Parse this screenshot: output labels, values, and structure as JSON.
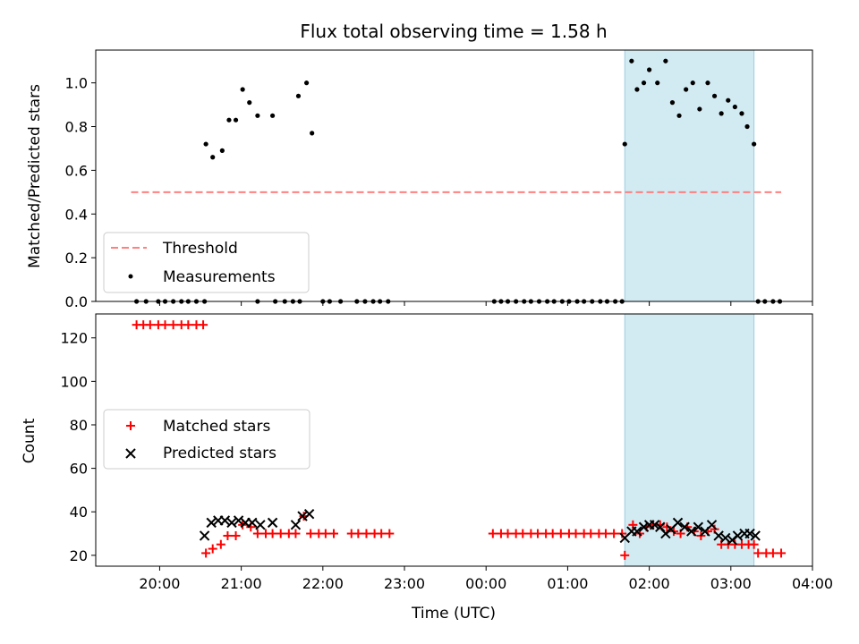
{
  "chart_data": [
    {
      "type": "scatter",
      "title": "Flux total observing time = 1.58 h",
      "ylabel": "Matched/Predicted stars",
      "ylim": [
        0,
        1.15
      ],
      "yticks": [
        "0.0",
        "0.2",
        "0.4",
        "0.6",
        "0.8",
        "1.0"
      ],
      "highlight_span": [
        "01:42",
        "03:17"
      ],
      "threshold": {
        "name": "Threshold",
        "value": 0.5,
        "x_range": [
          "19:39",
          "03:37"
        ],
        "color": "#ff8080",
        "style": "dashed"
      },
      "legend": {
        "placement": "lower-left",
        "entries": [
          "Threshold",
          "Measurements"
        ]
      },
      "series": [
        {
          "name": "Measurements",
          "marker": "dot",
          "color": "#000000",
          "points": [
            [
              "19:43",
              0
            ],
            [
              "19:50",
              0
            ],
            [
              "19:59",
              0
            ],
            [
              "20:04",
              0
            ],
            [
              "20:10",
              0
            ],
            [
              "20:16",
              0
            ],
            [
              "20:21",
              0
            ],
            [
              "20:27",
              0
            ],
            [
              "20:33",
              0
            ],
            [
              "20:34",
              0.72
            ],
            [
              "20:39",
              0.66
            ],
            [
              "20:46",
              0.69
            ],
            [
              "20:51",
              0.83
            ],
            [
              "20:56",
              0.83
            ],
            [
              "21:01",
              0.97
            ],
            [
              "21:06",
              0.91
            ],
            [
              "21:12",
              0.85
            ],
            [
              "21:23",
              0.85
            ],
            [
              "21:42",
              0.94
            ],
            [
              "21:48",
              1.0
            ],
            [
              "21:52",
              0.77
            ],
            [
              "21:12",
              0
            ],
            [
              "21:25",
              0
            ],
            [
              "21:32",
              0
            ],
            [
              "21:38",
              0
            ],
            [
              "21:43",
              0
            ],
            [
              "22:00",
              0
            ],
            [
              "22:05",
              0
            ],
            [
              "22:13",
              0
            ],
            [
              "22:25",
              0
            ],
            [
              "22:31",
              0
            ],
            [
              "22:37",
              0
            ],
            [
              "22:42",
              0
            ],
            [
              "22:48",
              0
            ],
            [
              "00:06",
              0
            ],
            [
              "00:11",
              0
            ],
            [
              "00:16",
              0
            ],
            [
              "00:22",
              0
            ],
            [
              "00:28",
              0
            ],
            [
              "00:33",
              0
            ],
            [
              "00:39",
              0
            ],
            [
              "00:45",
              0
            ],
            [
              "00:50",
              0
            ],
            [
              "00:56",
              0
            ],
            [
              "01:01",
              0
            ],
            [
              "01:07",
              0
            ],
            [
              "01:12",
              0
            ],
            [
              "01:18",
              0
            ],
            [
              "01:24",
              0
            ],
            [
              "01:29",
              0
            ],
            [
              "01:35",
              0
            ],
            [
              "01:40",
              0
            ],
            [
              "01:42",
              0.72
            ],
            [
              "01:47",
              1.1
            ],
            [
              "01:51",
              0.97
            ],
            [
              "01:56",
              1.0
            ],
            [
              "02:00",
              1.06
            ],
            [
              "02:06",
              1.0
            ],
            [
              "02:12",
              1.1
            ],
            [
              "02:17",
              0.91
            ],
            [
              "02:22",
              0.85
            ],
            [
              "02:27",
              0.97
            ],
            [
              "02:32",
              1.0
            ],
            [
              "02:37",
              0.88
            ],
            [
              "02:43",
              1.0
            ],
            [
              "02:48",
              0.94
            ],
            [
              "02:53",
              0.86
            ],
            [
              "02:58",
              0.92
            ],
            [
              "03:03",
              0.89
            ],
            [
              "03:08",
              0.86
            ],
            [
              "03:12",
              0.8
            ],
            [
              "03:17",
              0.72
            ],
            [
              "03:20",
              0
            ],
            [
              "03:25",
              0
            ],
            [
              "03:31",
              0
            ],
            [
              "03:36",
              0
            ]
          ]
        }
      ]
    },
    {
      "type": "scatter",
      "xlabel": "Time (UTC)",
      "ylabel": "Count",
      "ylim": [
        15,
        131
      ],
      "yticks": [
        "20",
        "40",
        "60",
        "80",
        "100",
        "120"
      ],
      "xticks": [
        "20:00",
        "21:00",
        "22:00",
        "23:00",
        "00:00",
        "01:00",
        "02:00",
        "03:00",
        "04:00"
      ],
      "x_range": [
        "19:13",
        "04:00"
      ],
      "highlight_span": [
        "01:42",
        "03:17"
      ],
      "legend": {
        "placement": "center-left",
        "entries": [
          "Matched stars",
          "Predicted stars"
        ]
      },
      "series": [
        {
          "name": "Matched stars",
          "marker": "plus",
          "color": "#ff0000",
          "points": [
            [
              "19:43",
              126
            ],
            [
              "19:48",
              126
            ],
            [
              "19:53",
              126
            ],
            [
              "19:59",
              126
            ],
            [
              "20:04",
              126
            ],
            [
              "20:10",
              126
            ],
            [
              "20:16",
              126
            ],
            [
              "20:21",
              126
            ],
            [
              "20:27",
              126
            ],
            [
              "20:32",
              126
            ],
            [
              "20:34",
              21
            ],
            [
              "20:39",
              23
            ],
            [
              "20:45",
              25
            ],
            [
              "20:50",
              29
            ],
            [
              "20:56",
              29
            ],
            [
              "21:01",
              34
            ],
            [
              "21:07",
              33
            ],
            [
              "21:12",
              30
            ],
            [
              "21:18",
              30
            ],
            [
              "21:23",
              30
            ],
            [
              "21:29",
              30
            ],
            [
              "21:35",
              30
            ],
            [
              "21:40",
              30
            ],
            [
              "21:46",
              38
            ],
            [
              "21:51",
              30
            ],
            [
              "21:57",
              30
            ],
            [
              "22:02",
              30
            ],
            [
              "22:08",
              30
            ],
            [
              "22:21",
              30
            ],
            [
              "22:26",
              30
            ],
            [
              "22:32",
              30
            ],
            [
              "22:38",
              30
            ],
            [
              "22:43",
              30
            ],
            [
              "22:49",
              30
            ],
            [
              "00:05",
              30
            ],
            [
              "00:11",
              30
            ],
            [
              "00:16",
              30
            ],
            [
              "00:22",
              30
            ],
            [
              "00:27",
              30
            ],
            [
              "00:33",
              30
            ],
            [
              "00:38",
              30
            ],
            [
              "00:44",
              30
            ],
            [
              "00:49",
              30
            ],
            [
              "00:55",
              30
            ],
            [
              "01:01",
              30
            ],
            [
              "01:06",
              30
            ],
            [
              "01:12",
              30
            ],
            [
              "01:17",
              30
            ],
            [
              "01:23",
              30
            ],
            [
              "01:28",
              30
            ],
            [
              "01:34",
              30
            ],
            [
              "01:40",
              30
            ],
            [
              "01:42",
              20
            ],
            [
              "01:48",
              34
            ],
            [
              "01:53",
              30
            ],
            [
              "01:58",
              33
            ],
            [
              "02:03",
              34
            ],
            [
              "02:08",
              34
            ],
            [
              "02:13",
              33
            ],
            [
              "02:18",
              31
            ],
            [
              "02:23",
              30
            ],
            [
              "02:28",
              33
            ],
            [
              "02:33",
              31
            ],
            [
              "02:38",
              29
            ],
            [
              "02:43",
              31
            ],
            [
              "02:48",
              32
            ],
            [
              "02:53",
              25
            ],
            [
              "02:58",
              25
            ],
            [
              "03:03",
              25
            ],
            [
              "03:08",
              25
            ],
            [
              "03:13",
              25
            ],
            [
              "03:17",
              25
            ],
            [
              "03:20",
              21
            ],
            [
              "03:26",
              21
            ],
            [
              "03:31",
              21
            ],
            [
              "03:37",
              21
            ]
          ]
        },
        {
          "name": "Predicted stars",
          "marker": "x",
          "color": "#000000",
          "points": [
            [
              "20:33",
              29
            ],
            [
              "20:38",
              35
            ],
            [
              "20:43",
              36
            ],
            [
              "20:48",
              36
            ],
            [
              "20:53",
              35
            ],
            [
              "20:58",
              36
            ],
            [
              "21:03",
              35
            ],
            [
              "21:08",
              35
            ],
            [
              "21:14",
              34
            ],
            [
              "21:23",
              35
            ],
            [
              "21:40",
              34
            ],
            [
              "21:45",
              38
            ],
            [
              "21:50",
              39
            ],
            [
              "01:42",
              28
            ],
            [
              "01:47",
              31
            ],
            [
              "01:51",
              31
            ],
            [
              "01:56",
              33
            ],
            [
              "02:00",
              34
            ],
            [
              "02:04",
              34
            ],
            [
              "02:08",
              33
            ],
            [
              "02:12",
              30
            ],
            [
              "02:16",
              32
            ],
            [
              "02:21",
              35
            ],
            [
              "02:26",
              33
            ],
            [
              "02:31",
              31
            ],
            [
              "02:36",
              33
            ],
            [
              "02:41",
              31
            ],
            [
              "02:46",
              34
            ],
            [
              "02:51",
              29
            ],
            [
              "02:56",
              28
            ],
            [
              "03:01",
              27
            ],
            [
              "03:05",
              29
            ],
            [
              "03:10",
              30
            ],
            [
              "03:14",
              30
            ],
            [
              "03:18",
              29
            ]
          ]
        }
      ]
    }
  ]
}
